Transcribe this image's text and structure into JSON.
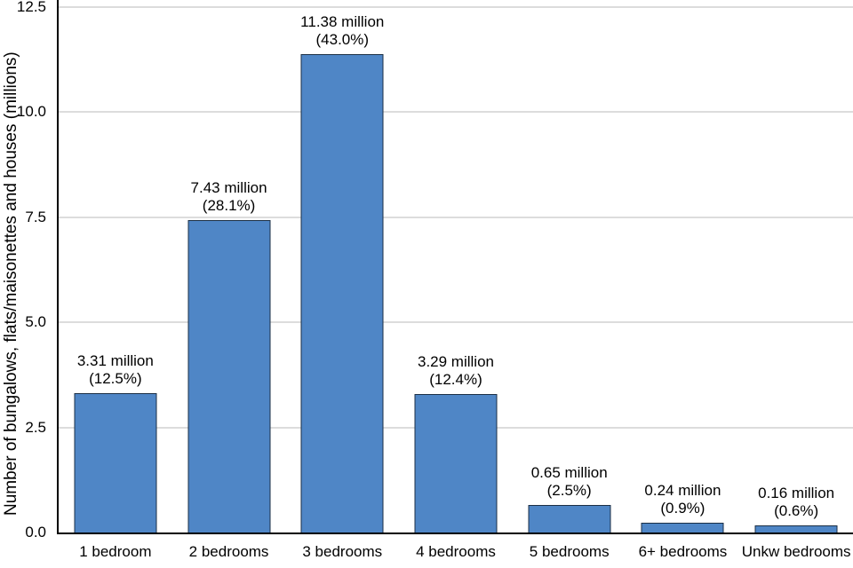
{
  "chart_data": {
    "type": "bar",
    "title": "",
    "xlabel": "",
    "ylabel": "Number of bungalows, flats/maisonettes and houses (millions)",
    "ylim": [
      0,
      12.5
    ],
    "yticks": [
      0.0,
      2.5,
      5.0,
      7.5,
      10.0,
      12.5
    ],
    "grid": true,
    "legend": "none",
    "bar_color": "#4f86c6",
    "categories": [
      "1 bedroom",
      "2 bedrooms",
      "3 bedrooms",
      "4 bedrooms",
      "5 bedrooms",
      "6+ bedrooms",
      "Unkw bedrooms"
    ],
    "values": [
      3.31,
      7.43,
      11.38,
      3.29,
      0.65,
      0.24,
      0.16
    ],
    "percentages": [
      12.5,
      28.1,
      43.0,
      12.4,
      2.5,
      0.9,
      0.6
    ],
    "labels": [
      {
        "value_text": "3.31 million",
        "pct_text": "(12.5%)"
      },
      {
        "value_text": "7.43 million",
        "pct_text": "(28.1%)"
      },
      {
        "value_text": "11.38 million",
        "pct_text": "(43.0%)"
      },
      {
        "value_text": "3.29 million",
        "pct_text": "(12.4%)"
      },
      {
        "value_text": "0.65 million",
        "pct_text": "(2.5%)"
      },
      {
        "value_text": "0.24 million",
        "pct_text": "(0.9%)"
      },
      {
        "value_text": "0.16 million",
        "pct_text": "(0.6%)"
      }
    ]
  }
}
